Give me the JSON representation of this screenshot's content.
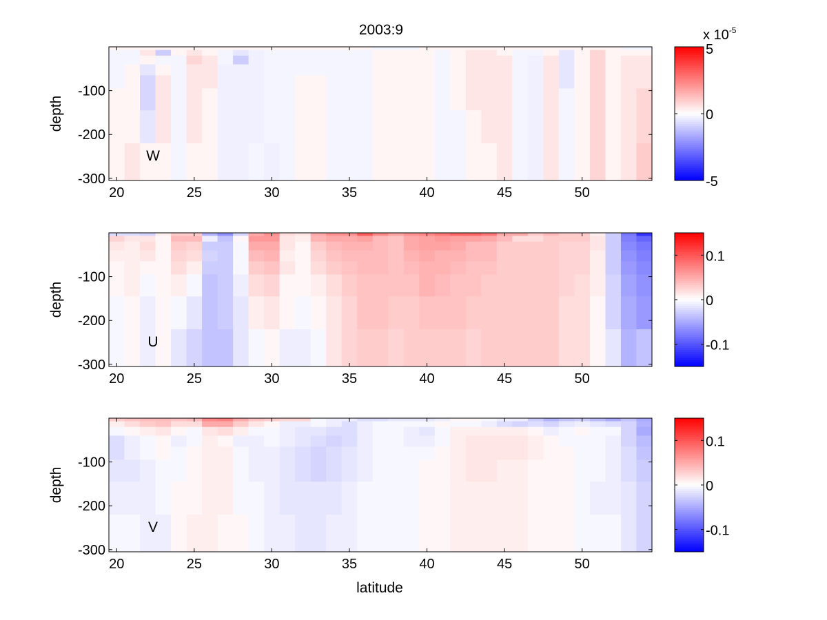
{
  "chart_data": {
    "type": "heatmap",
    "title": "2003:9",
    "xlabel": "latitude",
    "ylabel": "depth",
    "xlim": [
      19.5,
      54.5
    ],
    "ylim": [
      -305,
      0
    ],
    "xticks": [
      "20",
      "25",
      "30",
      "35",
      "40",
      "45",
      "50"
    ],
    "xtick_values": [
      20,
      25,
      30,
      35,
      40,
      45,
      50
    ],
    "yticks": [
      "-100",
      "-200",
      "-300"
    ],
    "ytick_values": [
      -100,
      -200,
      -300
    ],
    "lat_edges": [
      19.5,
      20.5,
      21.5,
      22.5,
      23.5,
      24.5,
      25.5,
      26.5,
      27.5,
      28.5,
      29.5,
      30.5,
      31.5,
      32.5,
      33.5,
      34.5,
      35.5,
      36.5,
      37.5,
      38.5,
      39.5,
      40.5,
      41.5,
      42.5,
      43.5,
      44.5,
      45.5,
      46.5,
      47.5,
      48.5,
      49.5,
      50.5,
      51.5,
      52.5,
      53.5,
      54.5
    ],
    "depth_edges": [
      0,
      -7,
      -20,
      -40,
      -65,
      -95,
      -145,
      -220,
      -305
    ],
    "panels": [
      {
        "name": "W",
        "clim": [
          -5,
          5
        ],
        "colorbar_ticks": [
          "5",
          "0",
          "-5"
        ],
        "colorbar_tick_values": [
          5,
          0,
          -5
        ],
        "colorbar_exponent": "x 10-5",
        "exponent_base": "x 10",
        "exponent_power": "-5",
        "values": [
          [
            0.2,
            0.2,
            0.2,
            0.2,
            0.2,
            0.2,
            0.2,
            0.2,
            0.2,
            0.2,
            0.2,
            0.2,
            0.2,
            0.2,
            0.2,
            0.2,
            0.2,
            -0.2,
            -0.2,
            -0.2,
            0.2,
            0.2,
            0.2,
            0.2,
            0.2,
            0.2,
            0.2,
            0.2,
            0.2,
            0.2,
            0.2,
            0.2,
            0.2,
            -0.2,
            -0.2
          ],
          [
            -0.2,
            -0.2,
            0.5,
            -1,
            0.2,
            0.5,
            0.2,
            -0.2,
            -0.5,
            -0.3,
            -0.2,
            -0.2,
            -0.2,
            -0.2,
            -0.2,
            -0.2,
            -0.2,
            0.2,
            0.2,
            0.2,
            0.2,
            -0.2,
            0.2,
            0.5,
            0.5,
            0.2,
            -0.2,
            -0.2,
            0.2,
            -0.5,
            0.2,
            0.8,
            0.2,
            0.2,
            0.2
          ],
          [
            -0.2,
            -0.2,
            0.2,
            -0.2,
            -0.2,
            0.8,
            0.5,
            -0.2,
            -1,
            -0.3,
            -0.2,
            -0.2,
            -0.2,
            -0.2,
            -0.2,
            -0.2,
            -0.2,
            0.2,
            0.2,
            0.2,
            0.2,
            -0.2,
            0.2,
            0.5,
            0.5,
            0.5,
            -0.2,
            -0.3,
            0.5,
            -0.5,
            0.2,
            0.8,
            0.2,
            0.5,
            0.5
          ],
          [
            -0.2,
            0.2,
            -0.5,
            0.2,
            -0.2,
            0.5,
            0.5,
            -0.3,
            -0.3,
            -0.3,
            -0.2,
            -0.2,
            -0.2,
            -0.2,
            -0.2,
            -0.2,
            -0.2,
            0.2,
            0.2,
            0.2,
            0.2,
            -0.2,
            0.2,
            0.5,
            0.5,
            0.5,
            -0.2,
            -0.3,
            0.5,
            -0.5,
            0.2,
            0.8,
            0.2,
            0.5,
            0.5
          ],
          [
            -0.2,
            0.2,
            -0.8,
            0.5,
            -0.2,
            0.5,
            0.5,
            -0.3,
            -0.3,
            -0.3,
            -0.2,
            -0.2,
            0.2,
            0.2,
            -0.2,
            -0.2,
            -0.2,
            0.2,
            0.2,
            0.2,
            0.2,
            -0.2,
            0.2,
            0.5,
            0.5,
            0.5,
            -0.2,
            -0.3,
            0.5,
            -0.5,
            0.2,
            0.8,
            0.2,
            0.5,
            0.5
          ],
          [
            0.2,
            0.2,
            -0.8,
            0.5,
            -0.2,
            0.5,
            0.2,
            -0.3,
            -0.3,
            -0.3,
            -0.2,
            -0.2,
            0.2,
            0.2,
            -0.2,
            -0.2,
            -0.2,
            0.2,
            0.2,
            0.2,
            0.2,
            -0.2,
            0.2,
            0.5,
            0.5,
            0.5,
            -0.2,
            -0.3,
            0.5,
            -0.2,
            0.2,
            0.8,
            0.2,
            0.5,
            0.8
          ],
          [
            0.2,
            0.2,
            -0.5,
            0.5,
            -0.2,
            0.5,
            0.2,
            -0.3,
            -0.3,
            -0.3,
            -0.2,
            -0.2,
            0.2,
            0.2,
            -0.2,
            -0.2,
            -0.2,
            0.2,
            0.2,
            0.2,
            0.2,
            -0.2,
            -0.2,
            0.2,
            0.5,
            0.5,
            -0.2,
            -0.3,
            0.5,
            -0.2,
            0.2,
            0.8,
            0.2,
            0.5,
            0.8
          ],
          [
            0.2,
            0.5,
            0.2,
            0.2,
            -0.2,
            0.2,
            0.2,
            -0.3,
            -0.3,
            -0.2,
            -0.3,
            -0.2,
            0.2,
            0.2,
            -0.2,
            -0.2,
            -0.2,
            0.2,
            0.2,
            0.2,
            0.2,
            -0.2,
            -0.2,
            0.2,
            0.2,
            0.5,
            -0.2,
            -0.3,
            0.5,
            -0.2,
            0.2,
            0.8,
            0.2,
            0.5,
            1
          ]
        ]
      },
      {
        "name": "U",
        "clim": [
          -0.15,
          0.15
        ],
        "colorbar_ticks": [
          "0.1",
          "0",
          "-0.1"
        ],
        "colorbar_tick_values": [
          0.1,
          0,
          -0.1
        ],
        "values": [
          [
            -0.02,
            -0.02,
            -0.025,
            0.01,
            0.03,
            0.03,
            -0.045,
            -0.065,
            -0.025,
            0.05,
            0.065,
            0.02,
            0.015,
            0.05,
            0.065,
            0.065,
            0.095,
            0.07,
            0.055,
            0.065,
            0.07,
            0.08,
            0.09,
            0.09,
            0.08,
            0.05,
            0.05,
            0.03,
            0.04,
            0.03,
            0.03,
            0.01,
            -0.03,
            -0.08,
            -0.12
          ],
          [
            0.025,
            0.015,
            0.015,
            0.005,
            0.04,
            0.04,
            -0.01,
            -0.035,
            0.005,
            0.06,
            0.06,
            0.015,
            0.01,
            0.045,
            0.05,
            0.05,
            0.055,
            0.04,
            0.035,
            0.05,
            0.055,
            0.06,
            0.055,
            0.055,
            0.05,
            0.04,
            0.02,
            0.02,
            0.03,
            0.03,
            0.03,
            0.015,
            -0.03,
            -0.075,
            -0.09
          ],
          [
            0.015,
            0.01,
            0.02,
            0.005,
            0.03,
            0.025,
            -0.03,
            -0.03,
            -0.005,
            0.05,
            0.05,
            0.015,
            0.005,
            0.03,
            0.04,
            0.045,
            0.045,
            0.04,
            0.035,
            0.05,
            0.055,
            0.055,
            0.05,
            0.04,
            0.04,
            0.03,
            0.03,
            0.03,
            0.03,
            0.025,
            0.025,
            0.015,
            -0.03,
            -0.07,
            -0.08
          ],
          [
            0.01,
            0.01,
            0.015,
            0.005,
            0.025,
            0.02,
            -0.025,
            -0.03,
            -0.005,
            0.04,
            0.045,
            0.01,
            0.005,
            0.025,
            0.035,
            0.04,
            0.04,
            0.04,
            0.035,
            0.045,
            0.05,
            0.045,
            0.045,
            0.04,
            0.04,
            0.03,
            0.03,
            0.03,
            0.03,
            0.025,
            0.025,
            0.01,
            -0.03,
            -0.065,
            -0.075
          ],
          [
            0.005,
            0.01,
            0.005,
            0.005,
            0.02,
            0.01,
            -0.03,
            -0.03,
            -0.005,
            0.03,
            0.035,
            0.015,
            0.005,
            0.02,
            0.03,
            0.035,
            0.04,
            0.04,
            0.035,
            0.04,
            0.045,
            0.045,
            0.04,
            0.035,
            0.035,
            0.03,
            0.03,
            0.03,
            0.03,
            0.025,
            0.025,
            0.01,
            -0.03,
            -0.06,
            -0.07
          ],
          [
            0.005,
            0.01,
            -0.005,
            0.005,
            0.01,
            -0.005,
            -0.035,
            -0.03,
            -0.01,
            0.02,
            0.025,
            0.005,
            0.005,
            0.01,
            0.02,
            0.03,
            0.035,
            0.035,
            0.035,
            0.035,
            0.045,
            0.04,
            0.035,
            0.035,
            0.03,
            0.03,
            0.03,
            0.03,
            0.03,
            0.025,
            0.02,
            0.01,
            -0.025,
            -0.055,
            -0.065
          ],
          [
            -0.005,
            0.005,
            -0.01,
            0.005,
            -0.005,
            -0.015,
            -0.035,
            -0.03,
            -0.015,
            0.01,
            0.015,
            0.005,
            -0.005,
            0.005,
            0.015,
            0.025,
            0.035,
            0.035,
            0.03,
            0.03,
            0.035,
            0.035,
            0.035,
            0.03,
            0.03,
            0.03,
            0.03,
            0.03,
            0.03,
            0.02,
            0.02,
            0.005,
            -0.025,
            -0.05,
            -0.06
          ],
          [
            -0.005,
            0.005,
            -0.01,
            0.005,
            -0.015,
            -0.025,
            -0.035,
            -0.035,
            -0.015,
            -0.005,
            0.005,
            -0.01,
            -0.01,
            -0.005,
            0.015,
            0.025,
            0.03,
            0.03,
            0.025,
            0.03,
            0.03,
            0.03,
            0.03,
            0.025,
            0.03,
            0.03,
            0.03,
            0.03,
            0.03,
            0.02,
            0.02,
            0.005,
            -0.015,
            -0.045,
            -0.035
          ]
        ]
      },
      {
        "name": "V",
        "clim": [
          -0.15,
          0.15
        ],
        "colorbar_ticks": [
          "0.1",
          "0",
          "-0.1"
        ],
        "colorbar_tick_values": [
          0.1,
          0,
          -0.1
        ],
        "values": [
          [
            0.03,
            0.035,
            0.04,
            0.04,
            0.035,
            0.04,
            0.07,
            0.075,
            0.05,
            0.035,
            0.03,
            0.025,
            0.025,
            -0.005,
            -0.01,
            -0.01,
            -0.02,
            -0.02,
            -0.015,
            -0.015,
            -0.015,
            -0.01,
            0.005,
            0.005,
            -0.005,
            -0.01,
            -0.01,
            -0.03,
            -0.045,
            -0.035,
            -0.03,
            -0.04,
            -0.05,
            -0.035,
            -0.05
          ],
          [
            0.01,
            0.02,
            0.03,
            0.035,
            0.02,
            0.02,
            0.05,
            0.05,
            0.03,
            0.015,
            0.005,
            -0.01,
            -0.01,
            -0.005,
            -0.01,
            -0.02,
            -0.01,
            -0.005,
            -0.005,
            -0.005,
            -0.005,
            0.005,
            -0.005,
            -0.005,
            -0.01,
            -0.02,
            -0.025,
            -0.02,
            -0.025,
            -0.015,
            -0.01,
            -0.015,
            -0.02,
            -0.025,
            -0.045
          ],
          [
            -0.005,
            0.005,
            0.01,
            0.015,
            0.005,
            -0.005,
            0.015,
            0.02,
            0.01,
            -0.005,
            -0.005,
            -0.01,
            -0.015,
            -0.015,
            -0.02,
            -0.02,
            -0.01,
            -0.005,
            -0.005,
            -0.01,
            -0.015,
            -0.005,
            0.01,
            0.01,
            0.01,
            0.01,
            0.01,
            0.005,
            -0.01,
            -0.005,
            0.005,
            -0.005,
            -0.005,
            -0.025,
            -0.05
          ],
          [
            -0.02,
            -0.01,
            -0.005,
            0.005,
            -0.01,
            -0.005,
            0.01,
            0.005,
            -0.01,
            -0.01,
            -0.005,
            -0.01,
            -0.015,
            -0.02,
            -0.025,
            -0.02,
            -0.01,
            -0.005,
            -0.005,
            -0.01,
            -0.01,
            -0.005,
            0.01,
            0.015,
            0.015,
            0.015,
            0.015,
            0.01,
            0.005,
            -0.005,
            -0.005,
            -0.005,
            -0.01,
            -0.025,
            -0.04
          ],
          [
            -0.02,
            -0.01,
            -0.005,
            0.005,
            -0.005,
            0.005,
            0.01,
            0.01,
            -0.005,
            -0.01,
            -0.01,
            -0.015,
            -0.02,
            -0.025,
            -0.02,
            -0.015,
            -0.01,
            -0.005,
            -0.005,
            -0.005,
            -0.005,
            0.005,
            0.01,
            0.015,
            0.015,
            0.015,
            0.015,
            0.01,
            0.005,
            0.005,
            -0.005,
            -0.005,
            -0.01,
            -0.02,
            -0.035
          ],
          [
            -0.015,
            -0.015,
            -0.01,
            -0.005,
            -0.005,
            0.005,
            0.01,
            0.01,
            -0.005,
            -0.01,
            -0.01,
            -0.015,
            -0.02,
            -0.025,
            -0.02,
            -0.015,
            -0.01,
            -0.005,
            -0.005,
            -0.005,
            0.005,
            0.005,
            0.01,
            0.015,
            0.015,
            0.01,
            0.01,
            0.005,
            0.005,
            0.005,
            -0.005,
            -0.005,
            -0.01,
            -0.02,
            -0.03
          ],
          [
            -0.01,
            -0.01,
            -0.01,
            -0.005,
            0.005,
            0.005,
            0.01,
            0.01,
            -0.005,
            -0.005,
            -0.01,
            -0.015,
            -0.015,
            -0.015,
            -0.015,
            -0.01,
            -0.005,
            -0.005,
            -0.005,
            -0.005,
            0.005,
            0.005,
            0.01,
            0.01,
            0.01,
            0.01,
            0.01,
            0.005,
            0.005,
            0.005,
            -0.005,
            -0.01,
            -0.01,
            -0.015,
            -0.025
          ],
          [
            -0.005,
            -0.005,
            -0.01,
            -0.01,
            0.005,
            0.01,
            0.01,
            0.005,
            0.005,
            -0.005,
            -0.01,
            -0.01,
            -0.015,
            -0.015,
            -0.01,
            -0.01,
            -0.005,
            -0.005,
            -0.005,
            -0.005,
            0.005,
            0.005,
            0.01,
            0.01,
            0.01,
            0.01,
            0.01,
            0.005,
            0.005,
            0.005,
            -0.005,
            -0.005,
            -0.005,
            -0.015,
            -0.025
          ]
        ]
      }
    ]
  }
}
